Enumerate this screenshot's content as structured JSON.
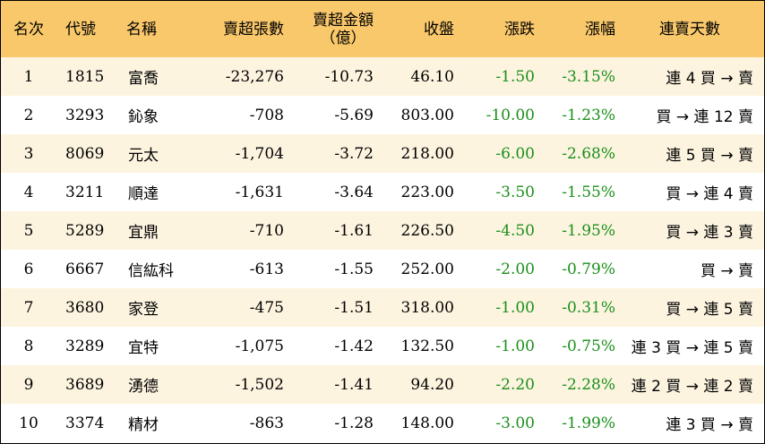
{
  "colors": {
    "header_bg": "#f9c86b",
    "odd_row_bg": "#fdf4e0",
    "even_row_bg": "#ffffff",
    "change_color": "#1a8f1a"
  },
  "header": {
    "rank": "名次",
    "code": "代號",
    "name": "名稱",
    "net_sell_shares": "賣超張數",
    "net_sell_amount_line1": "賣超金額",
    "net_sell_amount_line2": "（億）",
    "close": "收盤",
    "change": "漲跌",
    "change_pct": "漲幅",
    "streak": "連賣天數"
  },
  "rows": [
    {
      "rank": "1",
      "code": "1815",
      "name": "富喬",
      "shares": "-23,276",
      "amount": "-10.73",
      "close": "46.10",
      "change": "-1.50",
      "pct": "-3.15%",
      "streak": "連 4 買 → 賣"
    },
    {
      "rank": "2",
      "code": "3293",
      "name": "鈊象",
      "shares": "-708",
      "amount": "-5.69",
      "close": "803.00",
      "change": "-10.00",
      "pct": "-1.23%",
      "streak": "買 → 連 12 賣"
    },
    {
      "rank": "3",
      "code": "8069",
      "name": "元太",
      "shares": "-1,704",
      "amount": "-3.72",
      "close": "218.00",
      "change": "-6.00",
      "pct": "-2.68%",
      "streak": "連 5 買 → 賣"
    },
    {
      "rank": "4",
      "code": "3211",
      "name": "順達",
      "shares": "-1,631",
      "amount": "-3.64",
      "close": "223.00",
      "change": "-3.50",
      "pct": "-1.55%",
      "streak": "買 → 連 4 賣"
    },
    {
      "rank": "5",
      "code": "5289",
      "name": "宜鼎",
      "shares": "-710",
      "amount": "-1.61",
      "close": "226.50",
      "change": "-4.50",
      "pct": "-1.95%",
      "streak": "買 → 連 3 賣"
    },
    {
      "rank": "6",
      "code": "6667",
      "name": "信紘科",
      "shares": "-613",
      "amount": "-1.55",
      "close": "252.00",
      "change": "-2.00",
      "pct": "-0.79%",
      "streak": "買 → 賣"
    },
    {
      "rank": "7",
      "code": "3680",
      "name": "家登",
      "shares": "-475",
      "amount": "-1.51",
      "close": "318.00",
      "change": "-1.00",
      "pct": "-0.31%",
      "streak": "買 → 連 5 賣"
    },
    {
      "rank": "8",
      "code": "3289",
      "name": "宜特",
      "shares": "-1,075",
      "amount": "-1.42",
      "close": "132.50",
      "change": "-1.00",
      "pct": "-0.75%",
      "streak": "連 3 買 → 連 5 賣"
    },
    {
      "rank": "9",
      "code": "3689",
      "name": "湧德",
      "shares": "-1,502",
      "amount": "-1.41",
      "close": "94.20",
      "change": "-2.20",
      "pct": "-2.28%",
      "streak": "連 2 買 → 連 2 賣"
    },
    {
      "rank": "10",
      "code": "3374",
      "name": "精材",
      "shares": "-863",
      "amount": "-1.28",
      "close": "148.00",
      "change": "-3.00",
      "pct": "-1.99%",
      "streak": "連 3 買 → 賣"
    }
  ]
}
